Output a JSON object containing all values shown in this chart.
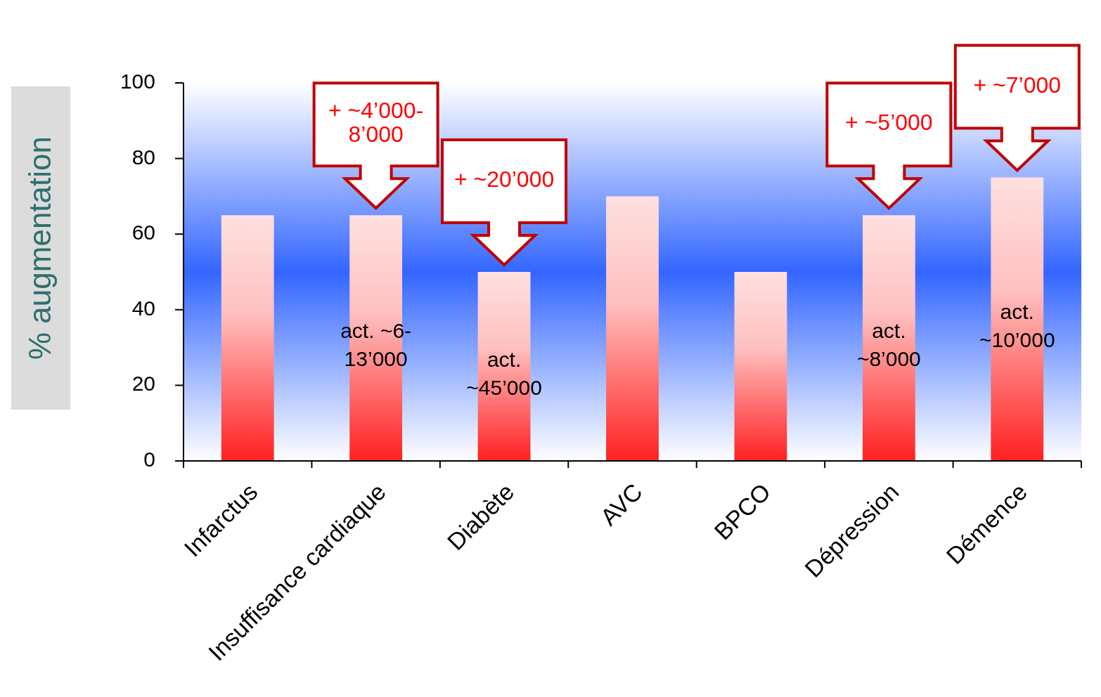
{
  "chart_data": {
    "type": "bar",
    "ylabel": "% augmentation",
    "categories": [
      "Infarctus",
      "Insuffisance cardiaque",
      "Diabète",
      "AVC",
      "BPCO",
      "Dépression",
      "Démence"
    ],
    "values": [
      65,
      65,
      50,
      70,
      50,
      65,
      75
    ],
    "color": "#ff2020",
    "ylim": [
      0,
      100
    ],
    "yticks": [
      0,
      20,
      40,
      60,
      80,
      100
    ],
    "grid": false,
    "annotations": [
      "+ ~4’000-8’000",
      "+ ~20’000",
      "+ ~5’000",
      "+ ~7’000",
      "act. ~6-13’000",
      "act. ~45’000",
      "act. ~8’000",
      "act. ~10’000"
    ]
  }
}
